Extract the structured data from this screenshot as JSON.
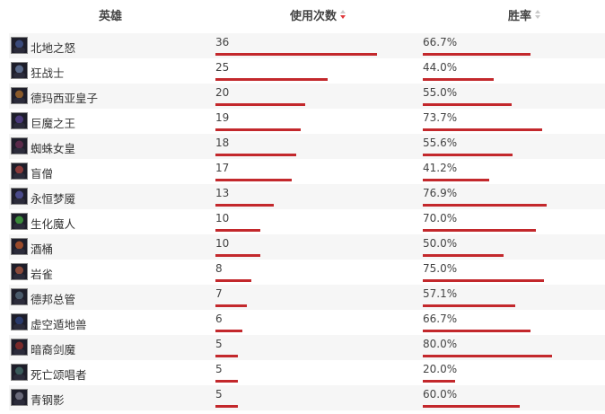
{
  "header": {
    "hero": "英雄",
    "usage": "使用次数",
    "winrate": "胜率"
  },
  "colors": {
    "bar": "#c3282c",
    "sort_active": "#e0373b",
    "stripe": "#f6f6f6"
  },
  "usage_max": 36,
  "rows": [
    {
      "name": "北地之怒",
      "usage": "36",
      "usage_value": 36,
      "winrate": "66.7%",
      "win_value": 66.7,
      "avatar_color": "#3a4a7a"
    },
    {
      "name": "狂战士",
      "usage": "25",
      "usage_value": 25,
      "winrate": "44.0%",
      "win_value": 44.0,
      "avatar_color": "#5a6a8a"
    },
    {
      "name": "德玛西亚皇子",
      "usage": "20",
      "usage_value": 20,
      "winrate": "55.0%",
      "win_value": 55.0,
      "avatar_color": "#8a5a2a"
    },
    {
      "name": "巨魔之王",
      "usage": "19",
      "usage_value": 19,
      "winrate": "73.7%",
      "win_value": 73.7,
      "avatar_color": "#4a3a7a"
    },
    {
      "name": "蜘蛛女皇",
      "usage": "18",
      "usage_value": 18,
      "winrate": "55.6%",
      "win_value": 55.6,
      "avatar_color": "#5a2a4a"
    },
    {
      "name": "盲僧",
      "usage": "17",
      "usage_value": 17,
      "winrate": "41.2%",
      "win_value": 41.2,
      "avatar_color": "#8a3a3a"
    },
    {
      "name": "永恒梦魇",
      "usage": "13",
      "usage_value": 13,
      "winrate": "76.9%",
      "win_value": 76.9,
      "avatar_color": "#4a4a8a"
    },
    {
      "name": "生化魔人",
      "usage": "10",
      "usage_value": 10,
      "winrate": "70.0%",
      "win_value": 70.0,
      "avatar_color": "#3a8a3a"
    },
    {
      "name": "酒桶",
      "usage": "10",
      "usage_value": 10,
      "winrate": "50.0%",
      "win_value": 50.0,
      "avatar_color": "#9a4a2a"
    },
    {
      "name": "岩雀",
      "usage": "8",
      "usage_value": 8,
      "winrate": "75.0%",
      "win_value": 75.0,
      "avatar_color": "#8a4a3a"
    },
    {
      "name": "德邦总管",
      "usage": "7",
      "usage_value": 7,
      "winrate": "57.1%",
      "win_value": 57.1,
      "avatar_color": "#4a5a6a"
    },
    {
      "name": "虚空遁地兽",
      "usage": "6",
      "usage_value": 6,
      "winrate": "66.7%",
      "win_value": 66.7,
      "avatar_color": "#2a3a6a"
    },
    {
      "name": "暗裔剑魔",
      "usage": "5",
      "usage_value": 5,
      "winrate": "80.0%",
      "win_value": 80.0,
      "avatar_color": "#7a2a2a"
    },
    {
      "name": "死亡颂唱者",
      "usage": "5",
      "usage_value": 5,
      "winrate": "20.0%",
      "win_value": 20.0,
      "avatar_color": "#3a5a5a"
    },
    {
      "name": "青钢影",
      "usage": "5",
      "usage_value": 5,
      "winrate": "60.0%",
      "win_value": 60.0,
      "avatar_color": "#6a6a7a"
    }
  ]
}
